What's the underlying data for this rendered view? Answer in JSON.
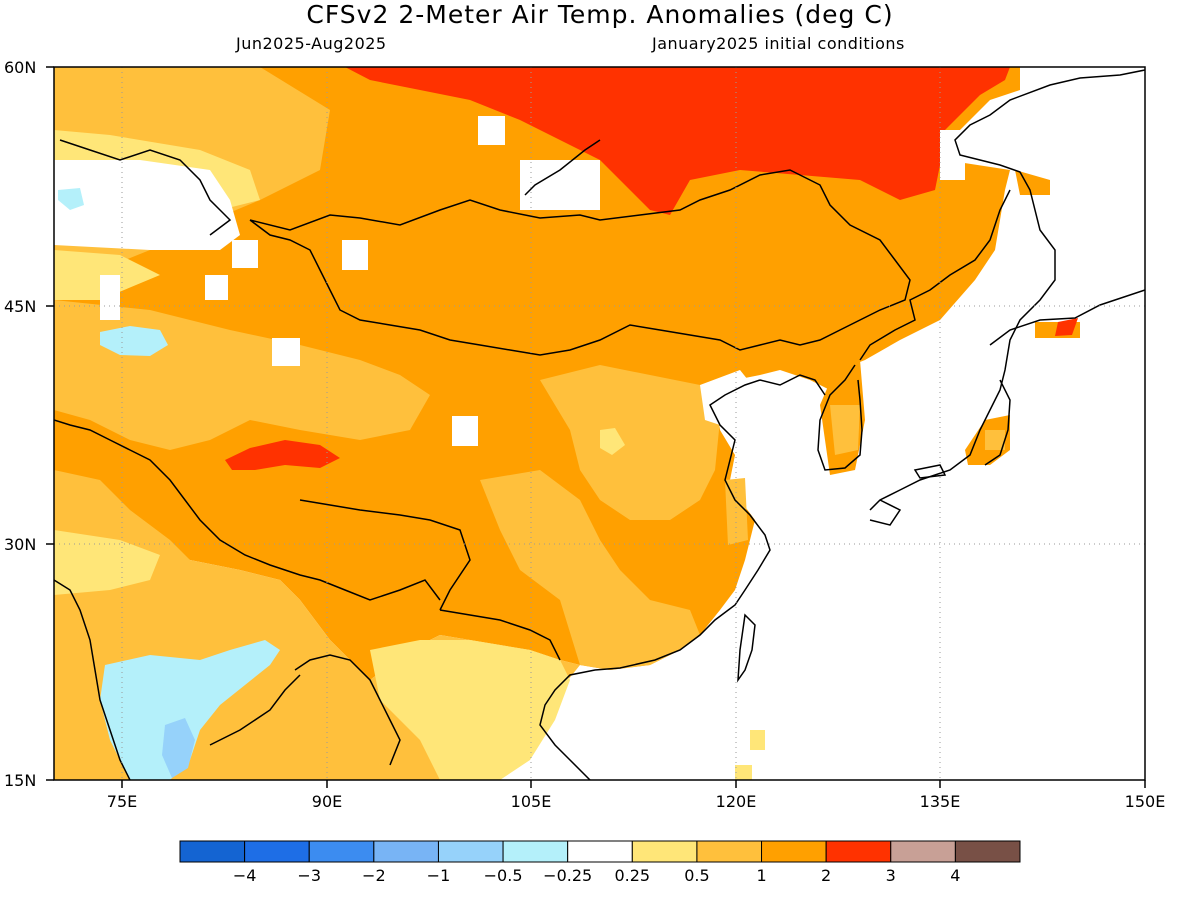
{
  "title": "CFSv2 2-Meter Air Temp. Anomalies (deg C)",
  "period": "Jun2025-Aug2025",
  "initial_conditions": "January2025 initial conditions",
  "lat_labels": [
    "60N",
    "45N",
    "30N",
    "15N"
  ],
  "lon_labels": [
    "75E",
    "90E",
    "105E",
    "120E",
    "135E",
    "150E"
  ],
  "colorbar": {
    "colors": [
      "#1464d2",
      "#1e6ee6",
      "#3c8cf0",
      "#78b4f5",
      "#96d2fa",
      "#b4f0fa",
      "#ffffff",
      "#ffe678",
      "#ffc03c",
      "#ffa000",
      "#ff3200",
      "#c8a096",
      "#785046"
    ],
    "labels": [
      "-4",
      "-3",
      "-2",
      "-1",
      "-0.5",
      "-0.25",
      "0.25",
      "0.5",
      "1",
      "2",
      "3",
      "4"
    ]
  },
  "palette": {
    "ocean": "#ffffff",
    "anomaly_0.5_1": "#ffc03c",
    "anomaly_1_2": "#ffa000",
    "anomaly_2_3": "#ff3200",
    "anomaly_0.25_0.5": "#ffe678",
    "anomaly_-0.5_-0.25": "#b4f0fa",
    "anomaly_-1_-0.5": "#96d2fa"
  }
}
